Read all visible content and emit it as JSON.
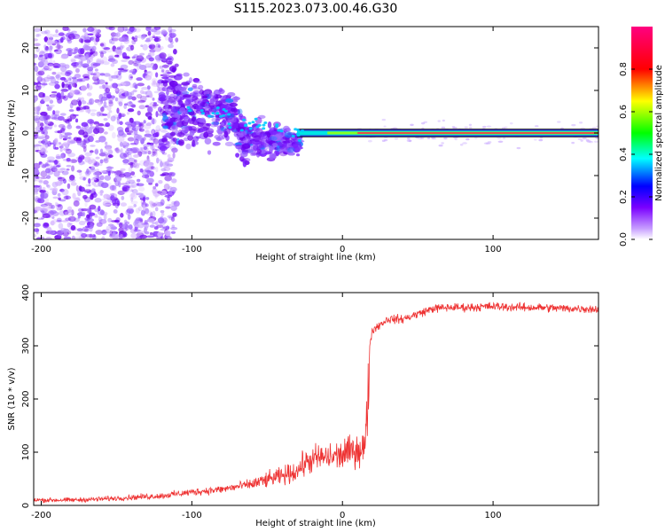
{
  "title": "S115.2023.073.00.46.G30",
  "chart_data": [
    {
      "type": "heatmap",
      "title": "S115.2023.073.00.46.G30",
      "xlabel": "Height of straight line (km)",
      "ylabel": "Frequency (Hz)",
      "xlim": [
        -205,
        170
      ],
      "ylim": [
        -25,
        25
      ],
      "xticks": [
        -200,
        -100,
        0,
        100
      ],
      "yticks": [
        -20,
        -10,
        0,
        10,
        20
      ],
      "colorbar": {
        "label": "Normalized spectral amplitude",
        "range": [
          0,
          1
        ],
        "ticks": [
          0.0,
          0.2,
          0.4,
          0.6,
          0.8
        ],
        "tick_labels": [
          "0.0",
          "0.2",
          "0.4",
          "0.6",
          "0.8"
        ],
        "colors": [
          "#ffffff",
          "#7a00ff",
          "#0000ff",
          "#00ffff",
          "#00ff00",
          "#ffff00",
          "#ff0000",
          "#ff0080"
        ]
      },
      "description_values": {
        "carrier_frequency_hz": 0,
        "carrier_start_km": -30,
        "scatter_region_km": [
          -205,
          -30
        ]
      }
    },
    {
      "type": "line",
      "xlabel": "Height of straight line (km)",
      "ylabel": "SNR (10 * v/v)",
      "xlim": [
        -205,
        170
      ],
      "ylim": [
        0,
        400
      ],
      "xticks": [
        -200,
        -100,
        0,
        100
      ],
      "yticks": [
        0,
        100,
        200,
        300,
        400
      ],
      "series": [
        {
          "name": "SNR",
          "color": "#ee3333",
          "x": [
            -205,
            -180,
            -160,
            -140,
            -120,
            -100,
            -80,
            -60,
            -50,
            -40,
            -30,
            -25,
            -20,
            -15,
            -10,
            -5,
            0,
            5,
            10,
            15,
            17,
            18,
            20,
            25,
            30,
            40,
            50,
            60,
            70,
            80,
            90,
            100,
            110,
            120,
            130,
            140,
            150,
            160,
            170
          ],
          "y": [
            10,
            10,
            12,
            15,
            18,
            25,
            30,
            40,
            48,
            55,
            65,
            80,
            85,
            90,
            90,
            92,
            95,
            100,
            105,
            110,
            200,
            300,
            330,
            340,
            350,
            350,
            360,
            370,
            372,
            372,
            373,
            374,
            373,
            372,
            372,
            371,
            370,
            370,
            368
          ]
        }
      ]
    }
  ]
}
